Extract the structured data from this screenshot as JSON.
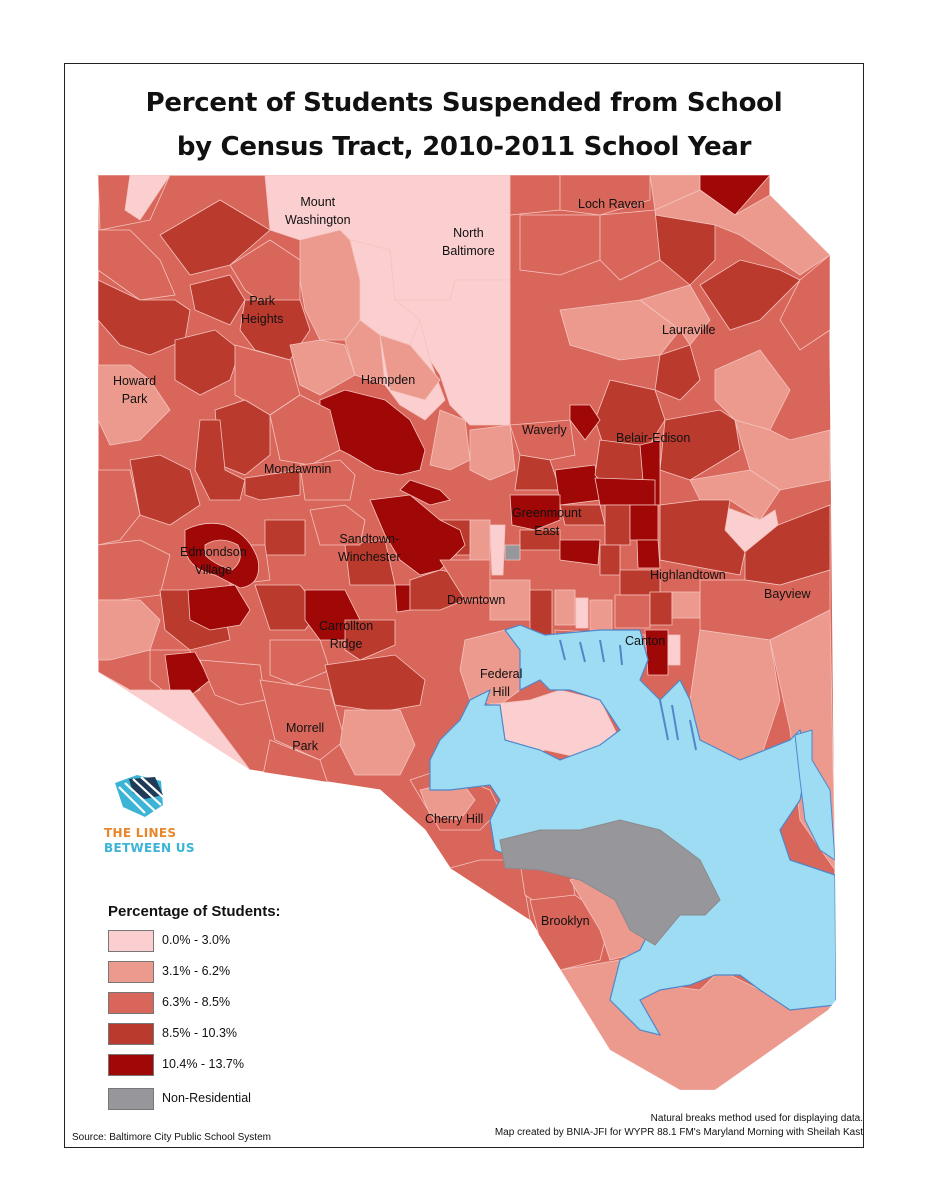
{
  "title_line1": "Percent of Students Suspended from School",
  "title_line2": "by Census Tract, 2010-2011 School Year",
  "neighborhoods": [
    {
      "id": "mount-washington",
      "label": "Mount\nWashington"
    },
    {
      "id": "north-baltimore",
      "label": "North\nBaltimore"
    },
    {
      "id": "loch-raven",
      "label": "Loch Raven"
    },
    {
      "id": "park-heights",
      "label": "Park\nHeights"
    },
    {
      "id": "lauraville",
      "label": "Lauraville"
    },
    {
      "id": "howard-park",
      "label": "Howard\nPark"
    },
    {
      "id": "hampden",
      "label": "Hampden"
    },
    {
      "id": "waverly",
      "label": "Waverly"
    },
    {
      "id": "belair-edison",
      "label": "Belair-Edison"
    },
    {
      "id": "mondawmin",
      "label": "Mondawmin"
    },
    {
      "id": "greenmount-east",
      "label": "Greenmount\nEast"
    },
    {
      "id": "sandtown-winchester",
      "label": "Sandtown-\nWinchester"
    },
    {
      "id": "edmondson-village",
      "label": "Edmondson\nVillage"
    },
    {
      "id": "highlandtown",
      "label": "Highlandtown"
    },
    {
      "id": "bayview",
      "label": "Bayview"
    },
    {
      "id": "downtown",
      "label": "Downtown"
    },
    {
      "id": "carrollton-ridge",
      "label": "Carrollton\nRidge"
    },
    {
      "id": "canton",
      "label": "Canton"
    },
    {
      "id": "federal-hill",
      "label": "Federal\nHill"
    },
    {
      "id": "morrell-park",
      "label": "Morrell\nPark"
    },
    {
      "id": "cherry-hill",
      "label": "Cherry Hill"
    },
    {
      "id": "brooklyn",
      "label": "Brooklyn"
    }
  ],
  "legend": {
    "title": "Percentage of Students:",
    "items": [
      {
        "label": "0.0% - 3.0%",
        "color": "#fbcfcf"
      },
      {
        "label": "3.1% - 6.2%",
        "color": "#ec9a8e"
      },
      {
        "label": "6.3% - 8.5%",
        "color": "#d9665a"
      },
      {
        "label": "8.5% - 10.3%",
        "color": "#bb3a2e"
      },
      {
        "label": "10.4% - 13.7%",
        "color": "#a00707"
      },
      {
        "label": "Non-Residential",
        "color": "#97979b"
      }
    ]
  },
  "water_color": "#9ddcf3",
  "logo": {
    "line1": "THE LINES",
    "line2": "BETWEEN US"
  },
  "notes": {
    "method": "Natural breaks method used for displaying data.",
    "credit": "Map created by BNIA-JFI for WYPR 88.1 FM's Maryland Morning with Sheilah Kast",
    "source": "Source: Baltimore City Public School System"
  }
}
